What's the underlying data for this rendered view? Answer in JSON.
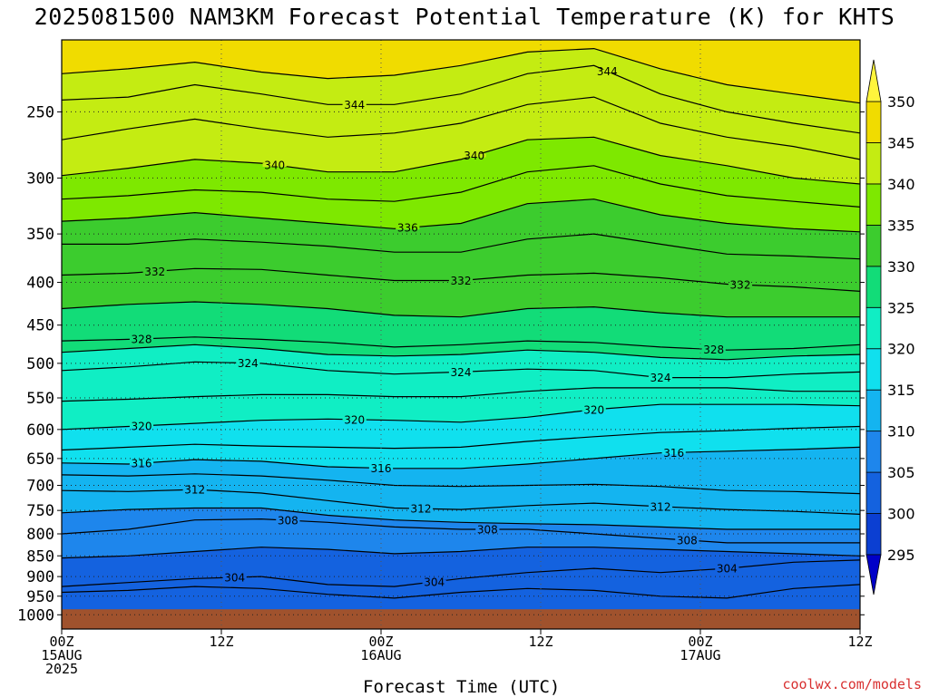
{
  "title": "2025081500 NAM3KM Forecast Potential Temperature (K) for KHTS",
  "credit": "coolwx.com/models",
  "chart_data": {
    "type": "filled-contour",
    "title": "2025081500 NAM3KM Forecast Potential Temperature (K) for KHTS",
    "xlabel": "Forecast Time (UTC)",
    "ylabel": "",
    "x_range_hours": [
      0,
      60
    ],
    "y_log_pressure": true,
    "y_range_hpa": [
      1040,
      205
    ],
    "grid": "dotted",
    "x_ticks": [
      {
        "hour": 0,
        "lines": [
          "00Z",
          "15AUG",
          "2025"
        ]
      },
      {
        "hour": 12,
        "lines": [
          "12Z"
        ]
      },
      {
        "hour": 24,
        "lines": [
          "00Z",
          "16AUG"
        ]
      },
      {
        "hour": 36,
        "lines": [
          "12Z"
        ]
      },
      {
        "hour": 48,
        "lines": [
          "00Z",
          "17AUG"
        ]
      },
      {
        "hour": 60,
        "lines": [
          "12Z"
        ]
      }
    ],
    "y_ticks": [
      {
        "p": 250,
        "label": "250"
      },
      {
        "p": 300,
        "label": "300"
      },
      {
        "p": 350,
        "label": "350"
      },
      {
        "p": 400,
        "label": "400"
      },
      {
        "p": 450,
        "label": "450"
      },
      {
        "p": 500,
        "label": "500"
      },
      {
        "p": 550,
        "label": "550"
      },
      {
        "p": 600,
        "label": "600"
      },
      {
        "p": 650,
        "label": "650"
      },
      {
        "p": 700,
        "label": "700"
      },
      {
        "p": 750,
        "label": "750"
      },
      {
        "p": 800,
        "label": "800"
      },
      {
        "p": 850,
        "label": "850"
      },
      {
        "p": 900,
        "label": "900"
      },
      {
        "p": 950,
        "label": "950"
      },
      {
        "p": 1000,
        "label": "1000"
      }
    ],
    "surface_pressure_hpa": 985,
    "colorbar": {
      "levels": [
        295,
        300,
        305,
        310,
        315,
        320,
        325,
        330,
        335,
        340,
        345,
        350
      ],
      "colors": [
        "#0000c8",
        "#0b3fd2",
        "#1462df",
        "#1e86ec",
        "#14b4f0",
        "#10e0ee",
        "#10eec4",
        "#12dc78",
        "#3ccc2e",
        "#7ee800",
        "#c4ec12",
        "#f0dc00",
        "#fff53c"
      ]
    },
    "isentropes": [
      {
        "theta": 302,
        "p": [
          940,
          935,
          925,
          930,
          945,
          955,
          940,
          930,
          935,
          950,
          955,
          930,
          920
        ],
        "label": false
      },
      {
        "theta": 304,
        "p": [
          925,
          915,
          905,
          900,
          920,
          925,
          905,
          890,
          880,
          890,
          880,
          865,
          860
        ],
        "label_hours": [
          13,
          28,
          50
        ]
      },
      {
        "theta": 306,
        "p": [
          855,
          850,
          840,
          830,
          835,
          845,
          840,
          830,
          830,
          835,
          840,
          845,
          850
        ],
        "label": false
      },
      {
        "theta": 308,
        "p": [
          800,
          790,
          770,
          768,
          775,
          785,
          790,
          790,
          800,
          810,
          820,
          820,
          820
        ],
        "label_hours": [
          17,
          32,
          47
        ]
      },
      {
        "theta": 310,
        "p": [
          755,
          748,
          745,
          745,
          760,
          770,
          775,
          778,
          780,
          785,
          790,
          790,
          790
        ],
        "label": false
      },
      {
        "theta": 312,
        "p": [
          710,
          712,
          708,
          715,
          730,
          745,
          748,
          740,
          735,
          742,
          748,
          752,
          758
        ],
        "label_hours": [
          10,
          27,
          45
        ]
      },
      {
        "theta": 314,
        "p": [
          680,
          682,
          678,
          682,
          690,
          700,
          702,
          700,
          698,
          702,
          710,
          712,
          716
        ],
        "label": false
      },
      {
        "theta": 316,
        "p": [
          658,
          660,
          652,
          655,
          665,
          668,
          668,
          660,
          650,
          640,
          637,
          634,
          630
        ],
        "label_hours": [
          6,
          24,
          46
        ]
      },
      {
        "theta": 318,
        "p": [
          635,
          630,
          625,
          628,
          630,
          632,
          630,
          620,
          612,
          605,
          602,
          598,
          595
        ],
        "label": false
      },
      {
        "theta": 320,
        "p": [
          600,
          595,
          590,
          585,
          583,
          585,
          588,
          580,
          568,
          560,
          560,
          560,
          562
        ],
        "label_hours": [
          6,
          22,
          40
        ]
      },
      {
        "theta": 322,
        "p": [
          555,
          552,
          548,
          545,
          545,
          548,
          548,
          540,
          535,
          535,
          535,
          540,
          540
        ],
        "label": false
      },
      {
        "theta": 324,
        "p": [
          510,
          505,
          498,
          500,
          510,
          515,
          512,
          508,
          510,
          520,
          520,
          515,
          512
        ],
        "label_hours": [
          14,
          30,
          45
        ]
      },
      {
        "theta": 326,
        "p": [
          485,
          480,
          475,
          480,
          488,
          490,
          488,
          482,
          485,
          492,
          495,
          490,
          488
        ],
        "label": false
      },
      {
        "theta": 328,
        "p": [
          470,
          468,
          465,
          468,
          472,
          478,
          475,
          470,
          472,
          478,
          482,
          480,
          475
        ],
        "label_hours": [
          6,
          49
        ]
      },
      {
        "theta": 330,
        "p": [
          430,
          425,
          422,
          425,
          430,
          438,
          440,
          430,
          428,
          435,
          440,
          440,
          440
        ],
        "label": false
      },
      {
        "theta": 332,
        "p": [
          392,
          390,
          385,
          386,
          392,
          398,
          398,
          392,
          390,
          395,
          402,
          405,
          410
        ],
        "label_hours": [
          7,
          30,
          51
        ]
      },
      {
        "theta": 334,
        "p": [
          360,
          360,
          355,
          358,
          362,
          368,
          368,
          355,
          350,
          360,
          370,
          372,
          375
        ],
        "label": false
      },
      {
        "theta": 336,
        "p": [
          338,
          335,
          330,
          335,
          340,
          345,
          340,
          322,
          318,
          332,
          340,
          345,
          348
        ],
        "label_hours": [
          26
        ]
      },
      {
        "theta": 338,
        "p": [
          318,
          315,
          310,
          312,
          318,
          320,
          312,
          295,
          290,
          305,
          315,
          320,
          325
        ],
        "label": false
      },
      {
        "theta": 340,
        "p": [
          298,
          292,
          285,
          288,
          295,
          295,
          285,
          270,
          268,
          282,
          290,
          300,
          305
        ],
        "label_hours": [
          16,
          31
        ]
      },
      {
        "theta": 342,
        "p": [
          270,
          262,
          255,
          262,
          268,
          265,
          258,
          245,
          240,
          258,
          268,
          275,
          285
        ],
        "label": false
      },
      {
        "theta": 344,
        "p": [
          242,
          240,
          232,
          238,
          245,
          245,
          238,
          225,
          220,
          238,
          250,
          258,
          265
        ],
        "label_hours": [
          22,
          41
        ]
      },
      {
        "theta": 346,
        "p": [
          225,
          222,
          218,
          224,
          228,
          226,
          220,
          212,
          210,
          222,
          232,
          238,
          244
        ],
        "label": false
      }
    ]
  }
}
